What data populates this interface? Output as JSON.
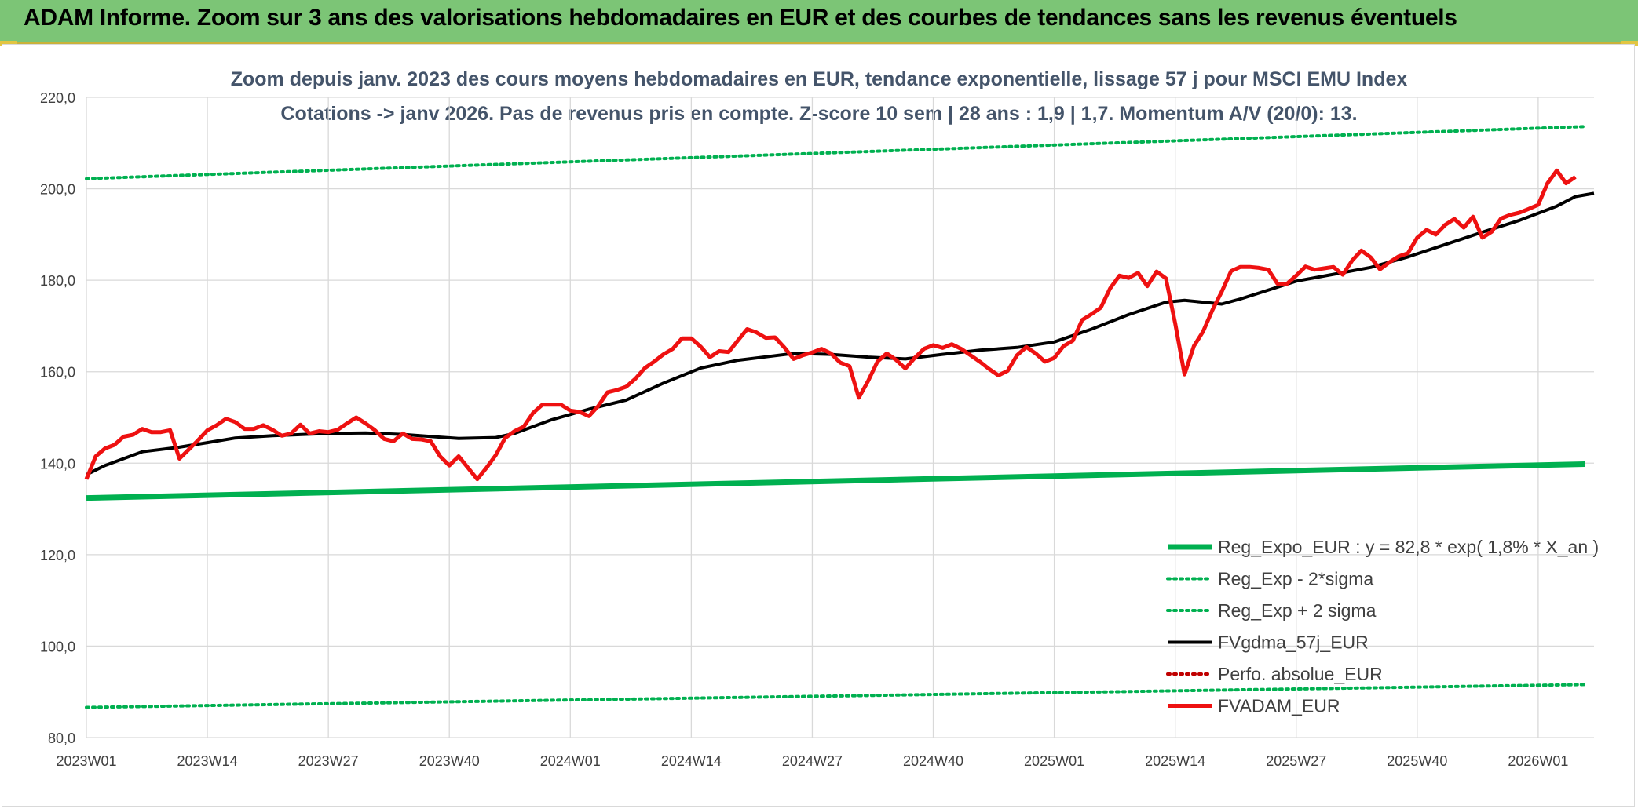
{
  "header": {
    "title": "ADAM Informe. Zoom sur 3 ans des valorisations hebdomadaires en EUR et des courbes de tendances sans les revenus éventuels"
  },
  "colors": {
    "header_bg": "#7cc576",
    "reg_expo": "#00b050",
    "bands": "#00b050",
    "fvgdma": "#000000",
    "perfo": "#c00000",
    "fvadam": "#ee1111",
    "title_text": "#44546a",
    "grid": "#d9d9d9"
  },
  "chart_data": {
    "type": "line",
    "title_line1": "Zoom depuis janv. 2023 des cours moyens hebdomadaires en EUR, tendance exponentielle, lissage 57 j pour MSCI EMU Index",
    "title_line2": "Cotations -> janv 2026. Pas de revenus pris en compte. Z-score 10 sem | 28 ans : 1,9 | 1,7. Momentum A/V (20/0): 13.",
    "ylim": [
      80,
      220
    ],
    "yticks": [
      "80,0",
      "100,0",
      "120,0",
      "140,0",
      "160,0",
      "180,0",
      "200,0",
      "220,0"
    ],
    "ytick_values": [
      80,
      100,
      120,
      140,
      160,
      180,
      200,
      220
    ],
    "xticks": [
      "2023W01",
      "2023W14",
      "2023W27",
      "2023W40",
      "2024W01",
      "2024W14",
      "2024W27",
      "2024W40",
      "2025W01",
      "2025W14",
      "2025W27",
      "2025W40",
      "2026W01"
    ],
    "xtick_index": [
      0,
      13,
      26,
      39,
      52,
      65,
      78,
      91,
      104,
      117,
      130,
      143,
      156
    ],
    "n_weeks": 162,
    "grid": true,
    "legend_position": "bottom-right",
    "series": [
      {
        "name": "Reg_Expo_EUR : y = 82,8 * exp( 1,8% *  X_an )",
        "style": "solid-thick",
        "color": "#00b050",
        "points": [
          [
            0,
            132.4
          ],
          [
            161,
            139.8
          ]
        ]
      },
      {
        "name": "Reg_Exp - 2*sigma",
        "style": "dotted",
        "color": "#00b050",
        "points": [
          [
            0,
            86.6
          ],
          [
            161,
            91.6
          ]
        ]
      },
      {
        "name": "Reg_Exp + 2 sigma",
        "style": "dotted",
        "color": "#00b050",
        "points": [
          [
            0,
            202.2
          ],
          [
            161,
            213.6
          ]
        ]
      },
      {
        "name": "FVgdma_57j_EUR",
        "style": "solid",
        "color": "#000000",
        "points": [
          [
            0,
            137.5
          ],
          [
            2,
            139.5
          ],
          [
            4,
            141
          ],
          [
            6,
            142.5
          ],
          [
            8,
            143
          ],
          [
            10,
            143.5
          ],
          [
            13,
            144.5
          ],
          [
            16,
            145.5
          ],
          [
            20,
            146
          ],
          [
            26,
            146.5
          ],
          [
            30,
            146.6
          ],
          [
            34,
            146.3
          ],
          [
            38,
            145.7
          ],
          [
            40,
            145.4
          ],
          [
            44,
            145.6
          ],
          [
            46,
            146.5
          ],
          [
            50,
            149.5
          ],
          [
            54,
            151.8
          ],
          [
            58,
            153.8
          ],
          [
            62,
            157.5
          ],
          [
            66,
            160.8
          ],
          [
            70,
            162.5
          ],
          [
            74,
            163.5
          ],
          [
            76,
            164
          ],
          [
            80,
            163.8
          ],
          [
            84,
            163.2
          ],
          [
            88,
            162.8
          ],
          [
            92,
            163.8
          ],
          [
            96,
            164.7
          ],
          [
            100,
            165.3
          ],
          [
            104,
            166.5
          ],
          [
            108,
            169.3
          ],
          [
            112,
            172.5
          ],
          [
            116,
            175.2
          ],
          [
            118,
            175.6
          ],
          [
            120,
            175.2
          ],
          [
            122,
            174.8
          ],
          [
            124,
            175.9
          ],
          [
            126,
            177.2
          ],
          [
            130,
            179.8
          ],
          [
            134,
            181.3
          ],
          [
            138,
            182.8
          ],
          [
            142,
            185.1
          ],
          [
            146,
            187.8
          ],
          [
            150,
            190.5
          ],
          [
            154,
            193.1
          ],
          [
            158,
            196.2
          ],
          [
            160,
            198.3
          ],
          [
            162,
            199
          ]
        ]
      },
      {
        "name": "Perfo. absolue_EUR",
        "style": "dotted",
        "color": "#c00000",
        "points": []
      },
      {
        "name": "FVADAM_EUR",
        "style": "solid-thick",
        "color": "#ee1111",
        "points": [
          [
            0,
            136.5
          ],
          [
            1,
            141.5
          ],
          [
            2,
            143.2
          ],
          [
            3,
            144
          ],
          [
            4,
            145.8
          ],
          [
            5,
            146.2
          ],
          [
            6,
            147.5
          ],
          [
            7,
            146.8
          ],
          [
            8,
            146.8
          ],
          [
            9,
            147.2
          ],
          [
            10,
            141
          ],
          [
            11,
            143
          ],
          [
            12,
            145
          ],
          [
            13,
            147.2
          ],
          [
            14,
            148.3
          ],
          [
            15,
            149.7
          ],
          [
            16,
            149
          ],
          [
            17,
            147.5
          ],
          [
            18,
            147.5
          ],
          [
            19,
            148.3
          ],
          [
            20,
            147.3
          ],
          [
            21,
            146
          ],
          [
            22,
            146.5
          ],
          [
            23,
            148.4
          ],
          [
            24,
            146.5
          ],
          [
            25,
            147
          ],
          [
            26,
            146.8
          ],
          [
            27,
            147.3
          ],
          [
            28,
            148.7
          ],
          [
            29,
            150
          ],
          [
            30,
            148.7
          ],
          [
            31,
            147.2
          ],
          [
            32,
            145.3
          ],
          [
            33,
            144.8
          ],
          [
            34,
            146.5
          ],
          [
            35,
            145.3
          ],
          [
            36,
            145.2
          ],
          [
            37,
            144.8
          ],
          [
            38,
            141.5
          ],
          [
            39,
            139.5
          ],
          [
            40,
            141.5
          ],
          [
            41,
            139
          ],
          [
            42,
            136.5
          ],
          [
            43,
            139
          ],
          [
            44,
            141.8
          ],
          [
            45,
            145.5
          ],
          [
            46,
            147
          ],
          [
            47,
            148
          ],
          [
            48,
            151
          ],
          [
            49,
            152.8
          ],
          [
            50,
            152.8
          ],
          [
            51,
            152.8
          ],
          [
            52,
            151.5
          ],
          [
            53,
            151.2
          ],
          [
            54,
            150.3
          ],
          [
            55,
            152.5
          ],
          [
            56,
            155.5
          ],
          [
            57,
            156
          ],
          [
            58,
            156.7
          ],
          [
            59,
            158.5
          ],
          [
            60,
            160.8
          ],
          [
            61,
            162.2
          ],
          [
            62,
            163.8
          ],
          [
            63,
            165
          ],
          [
            64,
            167.3
          ],
          [
            65,
            167.3
          ],
          [
            66,
            165.5
          ],
          [
            67,
            163.2
          ],
          [
            68,
            164.5
          ],
          [
            69,
            164.3
          ],
          [
            70,
            166.8
          ],
          [
            71,
            169.3
          ],
          [
            72,
            168.6
          ],
          [
            73,
            167.4
          ],
          [
            74,
            167.5
          ],
          [
            75,
            165.3
          ],
          [
            76,
            162.8
          ],
          [
            77,
            163.6
          ],
          [
            78,
            164.2
          ],
          [
            79,
            165
          ],
          [
            80,
            164
          ],
          [
            81,
            162
          ],
          [
            82,
            161.2
          ],
          [
            83,
            154.3
          ],
          [
            84,
            158
          ],
          [
            85,
            162.2
          ],
          [
            86,
            164
          ],
          [
            87,
            162.6
          ],
          [
            88,
            160.7
          ],
          [
            89,
            163
          ],
          [
            90,
            165
          ],
          [
            91,
            165.8
          ],
          [
            92,
            165.2
          ],
          [
            93,
            166
          ],
          [
            94,
            165
          ],
          [
            95,
            163.6
          ],
          [
            96,
            162.2
          ],
          [
            97,
            160.6
          ],
          [
            98,
            159.2
          ],
          [
            99,
            160.2
          ],
          [
            100,
            163.6
          ],
          [
            101,
            165.4
          ],
          [
            102,
            164
          ],
          [
            103,
            162.2
          ],
          [
            104,
            163
          ],
          [
            105,
            165.6
          ],
          [
            106,
            166.8
          ],
          [
            107,
            171.3
          ],
          [
            108,
            172.6
          ],
          [
            109,
            174
          ],
          [
            110,
            178.2
          ],
          [
            111,
            181
          ],
          [
            112,
            180.5
          ],
          [
            113,
            181.6
          ],
          [
            114,
            178.7
          ],
          [
            115,
            181.9
          ],
          [
            116,
            180.4
          ],
          [
            117,
            170.5
          ],
          [
            118,
            159.4
          ],
          [
            119,
            165.6
          ],
          [
            120,
            168.8
          ],
          [
            121,
            173.5
          ],
          [
            122,
            177.5
          ],
          [
            123,
            182
          ],
          [
            124,
            182.9
          ],
          [
            125,
            182.9
          ],
          [
            126,
            182.7
          ],
          [
            127,
            182.3
          ],
          [
            128,
            179.2
          ],
          [
            129,
            179.2
          ],
          [
            130,
            181
          ],
          [
            131,
            183
          ],
          [
            132,
            182.3
          ],
          [
            133,
            182.6
          ],
          [
            134,
            182.9
          ],
          [
            135,
            181.2
          ],
          [
            136,
            184.3
          ],
          [
            137,
            186.5
          ],
          [
            138,
            185
          ],
          [
            139,
            182.4
          ],
          [
            140,
            183.9
          ],
          [
            141,
            185.2
          ],
          [
            142,
            185.9
          ],
          [
            143,
            189.3
          ],
          [
            144,
            191
          ],
          [
            145,
            190
          ],
          [
            146,
            192.1
          ],
          [
            147,
            193.4
          ],
          [
            148,
            191.5
          ],
          [
            149,
            193.9
          ],
          [
            150,
            189.3
          ],
          [
            151,
            190.6
          ],
          [
            152,
            193.5
          ],
          [
            153,
            194.3
          ],
          [
            154,
            194.8
          ],
          [
            155,
            195.6
          ],
          [
            156,
            196.5
          ],
          [
            157,
            201.2
          ],
          [
            158,
            204
          ],
          [
            159,
            201.2
          ],
          [
            160,
            202.6
          ]
        ]
      }
    ]
  }
}
